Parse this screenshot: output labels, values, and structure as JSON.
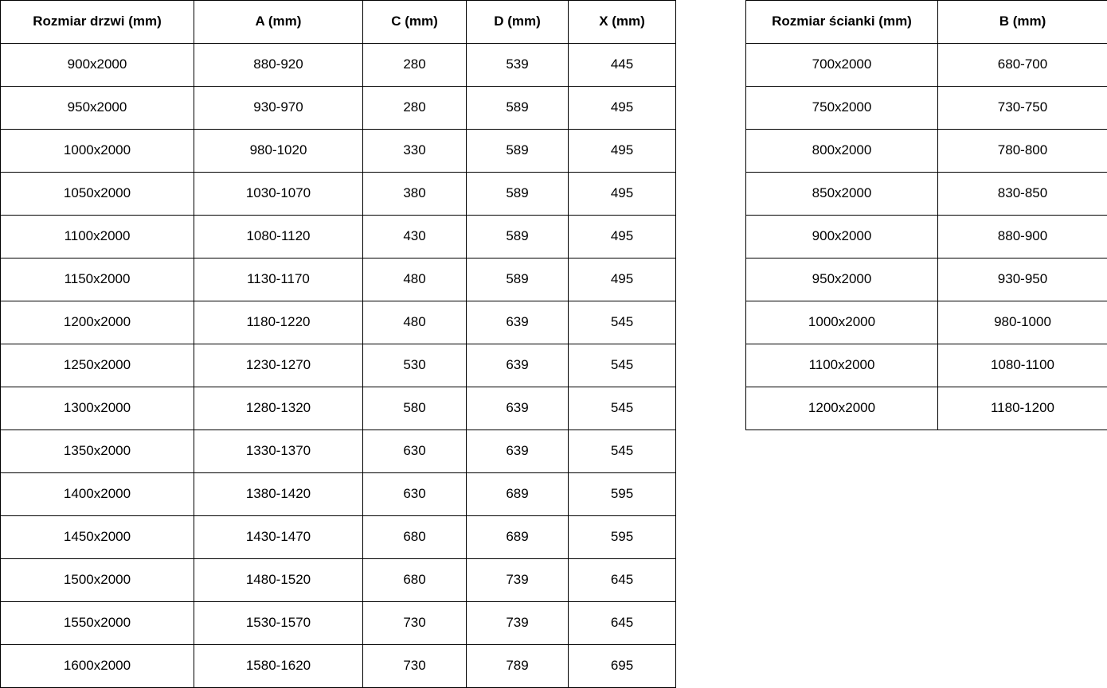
{
  "colors": {
    "border": "#000000",
    "text": "#000000",
    "background": "#ffffff"
  },
  "door_table": {
    "headers": [
      "Rozmiar drzwi (mm)",
      "A (mm)",
      "C (mm)",
      "D (mm)",
      "X (mm)"
    ],
    "rows": [
      [
        "900x2000",
        "880-920",
        "280",
        "539",
        "445"
      ],
      [
        "950x2000",
        "930-970",
        "280",
        "589",
        "495"
      ],
      [
        "1000x2000",
        "980-1020",
        "330",
        "589",
        "495"
      ],
      [
        "1050x2000",
        "1030-1070",
        "380",
        "589",
        "495"
      ],
      [
        "1100x2000",
        "1080-1120",
        "430",
        "589",
        "495"
      ],
      [
        "1150x2000",
        "1130-1170",
        "480",
        "589",
        "495"
      ],
      [
        "1200x2000",
        "1180-1220",
        "480",
        "639",
        "545"
      ],
      [
        "1250x2000",
        "1230-1270",
        "530",
        "639",
        "545"
      ],
      [
        "1300x2000",
        "1280-1320",
        "580",
        "639",
        "545"
      ],
      [
        "1350x2000",
        "1330-1370",
        "630",
        "639",
        "545"
      ],
      [
        "1400x2000",
        "1380-1420",
        "630",
        "689",
        "595"
      ],
      [
        "1450x2000",
        "1430-1470",
        "680",
        "689",
        "595"
      ],
      [
        "1500x2000",
        "1480-1520",
        "680",
        "739",
        "645"
      ],
      [
        "1550x2000",
        "1530-1570",
        "730",
        "739",
        "645"
      ],
      [
        "1600x2000",
        "1580-1620",
        "730",
        "789",
        "695"
      ]
    ]
  },
  "wall_table": {
    "headers": [
      "Rozmiar ścianki (mm)",
      "B (mm)"
    ],
    "rows": [
      [
        "700x2000",
        "680-700"
      ],
      [
        "750x2000",
        "730-750"
      ],
      [
        "800x2000",
        "780-800"
      ],
      [
        "850x2000",
        "830-850"
      ],
      [
        "900x2000",
        "880-900"
      ],
      [
        "950x2000",
        "930-950"
      ],
      [
        "1000x2000",
        "980-1000"
      ],
      [
        "1100x2000",
        "1080-1100"
      ],
      [
        "1200x2000",
        "1180-1200"
      ]
    ]
  }
}
